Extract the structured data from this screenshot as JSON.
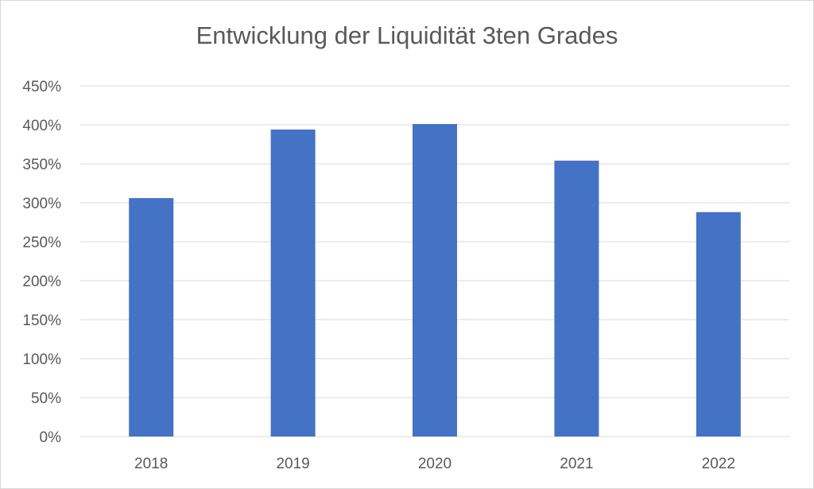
{
  "chart_data": {
    "type": "bar",
    "title": "Entwicklung der Liquidität 3ten Grades",
    "xlabel": "",
    "ylabel": "",
    "categories": [
      "2018",
      "2019",
      "2020",
      "2021",
      "2022"
    ],
    "values": [
      306,
      394,
      401,
      354,
      288
    ],
    "value_unit": "%",
    "ylim": [
      0,
      450
    ],
    "yticks": [
      0,
      50,
      100,
      150,
      200,
      250,
      300,
      350,
      400,
      450
    ],
    "ytick_labels": [
      "0%",
      "50%",
      "100%",
      "150%",
      "200%",
      "250%",
      "300%",
      "350%",
      "400%",
      "450%"
    ],
    "grid": true,
    "legend": "none",
    "bar_color": "#4472C4",
    "grid_color": "#d9d9d9",
    "text_color": "#595959"
  }
}
